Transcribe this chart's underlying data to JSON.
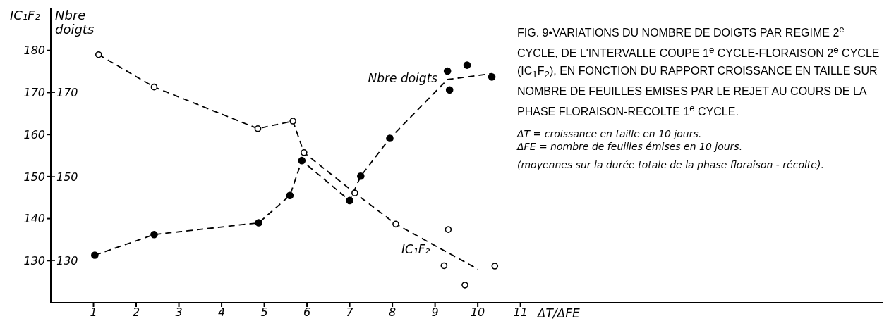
{
  "chart_data": {
    "type": "scatter",
    "title": "FIG. 9•VARIATIONS DU NOMBRE DE DOIGTS PAR REGIME 2$^{e}$ CYCLE, DE L'INTERVALLE COUPE 1$^{e}$ CYCLE-FLORAISON 2$^{e}$ CYCLE (IC$_{1}$F$_{2}$), EN FONCTION DU RAPPORT CROISSANCE EN TAILLE SUR NOMBRE DE FEUILLES EMISES PAR LE REJET AU COURS DE LA PHASE FLORAISON-RECOLTE 1$^{e}$ CYCLE.",
    "xlabel": "ΔT/ΔFE",
    "ylabel": "IC₁F₂",
    "y2label": "Nbre doigts",
    "annotations": [
      "ΔT = croissance en taille en 10 jours.",
      "ΔFE = nombre de feuilles émises en 10 jours.",
      "(moyennes sur la durée totale de la phase floraison - récolte)."
    ],
    "xlim": [
      0,
      19.5
    ],
    "xticks": [
      1,
      2,
      3,
      4,
      5,
      6,
      7,
      8,
      9,
      10,
      11
    ],
    "ylim": [
      120,
      190
    ],
    "yticks": [
      130,
      140,
      150,
      160,
      170,
      180
    ],
    "y2lim": [
      120,
      190
    ],
    "y2ticks": [
      130,
      150,
      170
    ],
    "grid": false,
    "legend": false,
    "marker": "circle",
    "series": [
      {
        "color": "#000000",
        "x": [
          1.12,
          2.42,
          4.85,
          5.67,
          5.93,
          7.12,
          8.08,
          9.21,
          9.31,
          9.7,
          10.4
        ],
        "values": [
          179,
          171.3,
          161.4,
          163.2,
          155.7,
          146.1,
          138.7,
          128.8,
          137.4,
          124.2,
          128.7
        ]
      },
      {
        "axis": "y2",
        "color": "#000000",
        "x": [
          1.03,
          2.42,
          4.87,
          5.6,
          5.88,
          7.0,
          7.26,
          7.94,
          9.29,
          9.34,
          9.75,
          10.33
        ],
        "values": [
          131.3,
          136.2,
          139,
          145.5,
          153.8,
          144.3,
          150.1,
          159.1,
          175.1,
          170.6,
          176.5,
          173.7
        ]
      },
      {
        "type": "line",
        "name": "IC₁F₂",
        "color": "#000000",
        "line_style": "dashed",
        "marker": "none",
        "x": [
          1.12,
          2.42,
          4.85,
          5.67,
          5.93,
          7.12,
          8.08,
          10.0
        ],
        "values": [
          179,
          171.3,
          161.4,
          163.2,
          155.7,
          146.1,
          138.7,
          128
        ]
      },
      {
        "type": "line",
        "name": "Nbre doigts",
        "axis": "y2",
        "color": "#000000",
        "line_style": "dashed",
        "marker": "none",
        "x": [
          1.03,
          2.42,
          4.87,
          5.6,
          5.88,
          7.0,
          7.26,
          7.94,
          9.29,
          10.33
        ],
        "values": [
          131.3,
          136.2,
          139,
          145.5,
          153.8,
          144.3,
          150.1,
          159.1,
          173.1,
          174.5
        ]
      }
    ]
  }
}
